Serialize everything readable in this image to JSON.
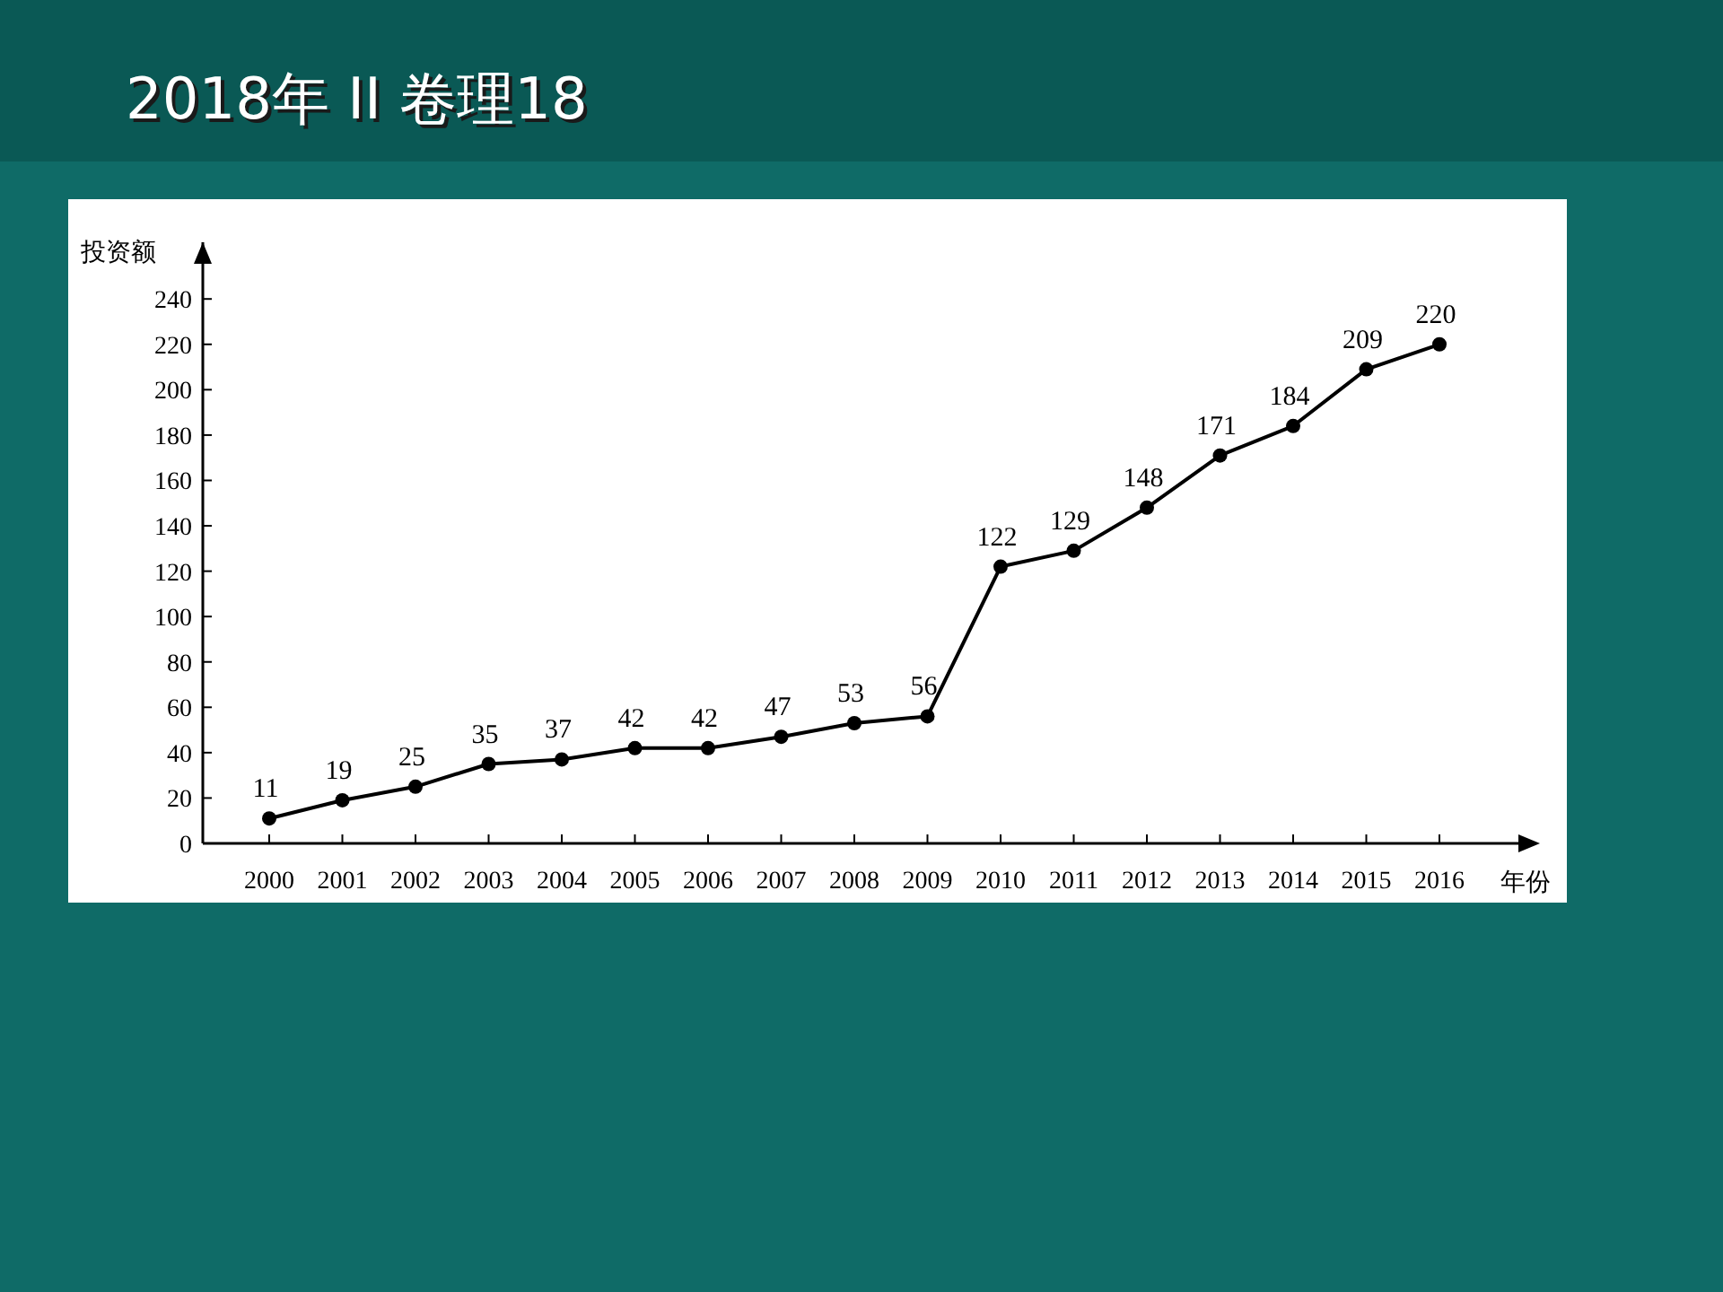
{
  "chart_data": {
    "type": "line",
    "title": "2018年 II 卷理18",
    "xlabel": "年份",
    "ylabel": "投资额",
    "categories": [
      "2000",
      "2001",
      "2002",
      "2003",
      "2004",
      "2005",
      "2006",
      "2007",
      "2008",
      "2009",
      "2010",
      "2011",
      "2012",
      "2013",
      "2014",
      "2015",
      "2016"
    ],
    "values": [
      11,
      19,
      25,
      35,
      37,
      42,
      42,
      47,
      53,
      56,
      122,
      129,
      148,
      171,
      184,
      209,
      220
    ],
    "color": "#000000",
    "ylim": [
      0,
      265
    ],
    "yticks": [
      0,
      20,
      40,
      60,
      80,
      100,
      120,
      140,
      160,
      180,
      200,
      220,
      240
    ],
    "data_labels": true,
    "marker": "circle",
    "line_style": "solid"
  }
}
